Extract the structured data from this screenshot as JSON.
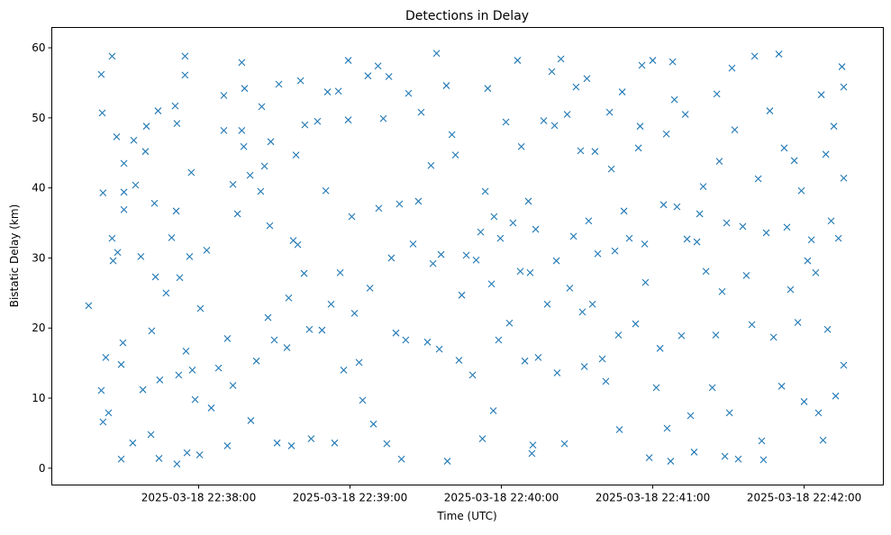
{
  "chart_data": {
    "type": "scatter",
    "title": "Detections in Delay",
    "xlabel": "Time (UTC)",
    "ylabel": "Bistatic Delay (km)",
    "x_unit": "seconds after 2025-03-18 22:37:00 UTC",
    "xlim": [
      1.8,
      331.4
    ],
    "ylim": [
      -2.4,
      62.9
    ],
    "x_ticks": [
      {
        "value": 60,
        "label": "2025-03-18 22:38:00"
      },
      {
        "value": 120,
        "label": "2025-03-18 22:39:00"
      },
      {
        "value": 180,
        "label": "2025-03-18 22:40:00"
      },
      {
        "value": 240,
        "label": "2025-03-18 22:41:00"
      },
      {
        "value": 300,
        "label": "2025-03-18 22:42:00"
      }
    ],
    "y_ticks": [
      {
        "value": 0,
        "label": "0"
      },
      {
        "value": 10,
        "label": "10"
      },
      {
        "value": 20,
        "label": "20"
      },
      {
        "value": 30,
        "label": "30"
      },
      {
        "value": 40,
        "label": "40"
      },
      {
        "value": 50,
        "label": "50"
      },
      {
        "value": 60,
        "label": "60"
      }
    ],
    "grid": false,
    "marker": "x",
    "color": "#1f77b4",
    "points": [
      [
        16.4,
        23.2
      ],
      [
        21.4,
        56.2
      ],
      [
        21.8,
        50.7
      ],
      [
        22.1,
        39.3
      ],
      [
        21.4,
        11.1
      ],
      [
        22.1,
        6.6
      ],
      [
        23.2,
        15.8
      ],
      [
        24.3,
        7.9
      ],
      [
        25.7,
        58.8
      ],
      [
        25.7,
        32.8
      ],
      [
        26.1,
        29.6
      ],
      [
        27.5,
        47.3
      ],
      [
        27.9,
        30.8
      ],
      [
        29.3,
        1.3
      ],
      [
        29.3,
        14.8
      ],
      [
        30,
        17.9
      ],
      [
        30.4,
        43.5
      ],
      [
        30.4,
        39.4
      ],
      [
        30.4,
        36.9
      ],
      [
        33.9,
        3.6
      ],
      [
        34.3,
        46.8
      ],
      [
        35,
        40.4
      ],
      [
        37.1,
        30.2
      ],
      [
        37.9,
        11.2
      ],
      [
        38.9,
        45.2
      ],
      [
        39.3,
        48.8
      ],
      [
        41.1,
        4.8
      ],
      [
        41.4,
        19.6
      ],
      [
        42.5,
        37.8
      ],
      [
        42.9,
        27.3
      ],
      [
        43.9,
        51.0
      ],
      [
        44.3,
        1.4
      ],
      [
        44.6,
        12.6
      ],
      [
        47.1,
        25.0
      ],
      [
        49.3,
        32.9
      ],
      [
        50.7,
        51.7
      ],
      [
        51.1,
        36.7
      ],
      [
        51.4,
        49.2
      ],
      [
        51.4,
        0.6
      ],
      [
        52.1,
        13.3
      ],
      [
        52.5,
        27.2
      ],
      [
        54.6,
        58.8
      ],
      [
        54.6,
        56.1
      ],
      [
        55,
        16.7
      ],
      [
        55.4,
        2.2
      ],
      [
        56.4,
        30.2
      ],
      [
        57.1,
        42.2
      ],
      [
        57.5,
        14.0
      ],
      [
        58.6,
        9.8
      ],
      [
        60.4,
        1.9
      ],
      [
        60.7,
        22.8
      ],
      [
        63.2,
        31.1
      ],
      [
        65,
        8.6
      ],
      [
        67.9,
        14.3
      ],
      [
        70,
        53.2
      ],
      [
        70,
        48.2
      ],
      [
        71.4,
        18.5
      ],
      [
        71.4,
        3.2
      ],
      [
        73.6,
        40.5
      ],
      [
        73.6,
        11.8
      ],
      [
        75.4,
        36.3
      ],
      [
        77.1,
        57.9
      ],
      [
        77.1,
        48.2
      ],
      [
        77.9,
        45.9
      ],
      [
        78.2,
        54.2
      ],
      [
        80.4,
        41.8
      ],
      [
        80.7,
        6.8
      ],
      [
        82.9,
        15.3
      ],
      [
        84.6,
        39.5
      ],
      [
        85,
        51.6
      ],
      [
        86.1,
        43.1
      ],
      [
        87.5,
        21.5
      ],
      [
        88.2,
        34.6
      ],
      [
        88.6,
        46.6
      ],
      [
        90,
        18.3
      ],
      [
        91.1,
        3.6
      ],
      [
        91.8,
        54.8
      ],
      [
        95,
        17.2
      ],
      [
        95.7,
        24.3
      ],
      [
        96.8,
        3.2
      ],
      [
        97.5,
        32.5
      ],
      [
        98.6,
        44.7
      ],
      [
        99.3,
        31.9
      ],
      [
        100.4,
        55.3
      ],
      [
        101.8,
        27.8
      ],
      [
        102.1,
        49.0
      ],
      [
        103.9,
        19.8
      ],
      [
        104.6,
        4.2
      ],
      [
        107.1,
        49.5
      ],
      [
        108.9,
        19.7
      ],
      [
        110.4,
        39.6
      ],
      [
        111.1,
        53.7
      ],
      [
        112.5,
        23.4
      ],
      [
        113.9,
        3.6
      ],
      [
        115.4,
        53.8
      ],
      [
        116.1,
        27.9
      ],
      [
        117.5,
        14.0
      ],
      [
        119.3,
        58.2
      ],
      [
        119.3,
        49.7
      ],
      [
        120.7,
        35.9
      ],
      [
        121.8,
        22.1
      ],
      [
        123.6,
        15.1
      ],
      [
        125,
        9.7
      ],
      [
        127.1,
        56.0
      ],
      [
        127.9,
        25.7
      ],
      [
        129.3,
        6.3
      ],
      [
        131.1,
        57.4
      ],
      [
        131.4,
        37.1
      ],
      [
        133.2,
        49.9
      ],
      [
        134.6,
        3.5
      ],
      [
        135.4,
        55.9
      ],
      [
        136.4,
        30.0
      ],
      [
        138.2,
        19.3
      ],
      [
        139.6,
        37.7
      ],
      [
        140.4,
        1.3
      ],
      [
        142.1,
        18.3
      ],
      [
        143.2,
        53.5
      ],
      [
        145,
        32.0
      ],
      [
        147.1,
        38.1
      ],
      [
        148.2,
        50.8
      ],
      [
        150.7,
        18.0
      ],
      [
        152.1,
        43.2
      ],
      [
        152.9,
        29.2
      ],
      [
        154.3,
        59.2
      ],
      [
        155.4,
        17.0
      ],
      [
        156.1,
        30.5
      ],
      [
        158.2,
        54.6
      ],
      [
        158.6,
        1.0
      ],
      [
        160.4,
        47.6
      ],
      [
        161.8,
        44.7
      ],
      [
        163.2,
        15.4
      ],
      [
        164.3,
        24.7
      ],
      [
        166.1,
        30.4
      ],
      [
        168.6,
        13.3
      ],
      [
        170,
        29.7
      ],
      [
        171.8,
        33.7
      ],
      [
        172.5,
        4.2
      ],
      [
        173.6,
        39.5
      ],
      [
        174.6,
        54.2
      ],
      [
        176.1,
        26.3
      ],
      [
        176.8,
        8.2
      ],
      [
        177.1,
        35.9
      ],
      [
        178.9,
        18.3
      ],
      [
        179.6,
        32.8
      ],
      [
        181.8,
        49.4
      ],
      [
        183.2,
        20.7
      ],
      [
        184.6,
        35.0
      ],
      [
        186.4,
        58.2
      ],
      [
        187.5,
        28.1
      ],
      [
        187.9,
        45.9
      ],
      [
        189.3,
        15.3
      ],
      [
        190.7,
        38.1
      ],
      [
        191.4,
        27.9
      ],
      [
        192.1,
        2.1
      ],
      [
        192.5,
        3.3
      ],
      [
        193.6,
        34.1
      ],
      [
        194.6,
        15.8
      ],
      [
        196.8,
        49.6
      ],
      [
        198.2,
        23.4
      ],
      [
        200,
        56.6
      ],
      [
        201.1,
        48.9
      ],
      [
        201.8,
        29.6
      ],
      [
        202.1,
        13.6
      ],
      [
        203.6,
        58.4
      ],
      [
        205,
        3.5
      ],
      [
        206.1,
        50.5
      ],
      [
        207.1,
        25.7
      ],
      [
        208.6,
        33.1
      ],
      [
        209.6,
        54.4
      ],
      [
        211.4,
        45.3
      ],
      [
        212.1,
        22.3
      ],
      [
        212.9,
        14.5
      ],
      [
        213.9,
        55.6
      ],
      [
        214.6,
        35.3
      ],
      [
        216.1,
        23.4
      ],
      [
        217.1,
        45.2
      ],
      [
        218.2,
        30.6
      ],
      [
        220,
        15.6
      ],
      [
        221.4,
        12.4
      ],
      [
        222.9,
        50.8
      ],
      [
        223.6,
        42.7
      ],
      [
        225,
        31.0
      ],
      [
        226.4,
        19.0
      ],
      [
        226.8,
        5.5
      ],
      [
        227.9,
        53.7
      ],
      [
        228.6,
        36.7
      ],
      [
        230.7,
        32.8
      ],
      [
        233.2,
        20.6
      ],
      [
        234.3,
        45.7
      ],
      [
        235,
        48.8
      ],
      [
        235.7,
        57.5
      ],
      [
        236.8,
        32.0
      ],
      [
        237.1,
        26.5
      ],
      [
        238.6,
        1.5
      ],
      [
        240,
        58.2
      ],
      [
        241.4,
        11.5
      ],
      [
        242.9,
        17.1
      ],
      [
        244.3,
        37.6
      ],
      [
        245.4,
        47.7
      ],
      [
        245.7,
        5.7
      ],
      [
        247.1,
        1.0
      ],
      [
        247.9,
        58.0
      ],
      [
        248.6,
        52.6
      ],
      [
        249.6,
        37.3
      ],
      [
        251.4,
        18.9
      ],
      [
        252.9,
        50.5
      ],
      [
        253.6,
        32.7
      ],
      [
        255,
        7.5
      ],
      [
        256.4,
        2.3
      ],
      [
        257.5,
        32.3
      ],
      [
        258.6,
        36.3
      ],
      [
        260,
        40.2
      ],
      [
        261.1,
        28.1
      ],
      [
        263.6,
        11.5
      ],
      [
        265,
        19.0
      ],
      [
        265.4,
        53.4
      ],
      [
        266.4,
        43.8
      ],
      [
        267.5,
        25.2
      ],
      [
        268.6,
        1.7
      ],
      [
        269.3,
        35.0
      ],
      [
        270.4,
        7.9
      ],
      [
        271.4,
        57.1
      ],
      [
        272.5,
        48.3
      ],
      [
        273.9,
        1.3
      ],
      [
        275.7,
        34.5
      ],
      [
        277.1,
        27.5
      ],
      [
        279.3,
        20.5
      ],
      [
        280.4,
        58.8
      ],
      [
        281.8,
        41.3
      ],
      [
        283.2,
        3.9
      ],
      [
        283.9,
        1.2
      ],
      [
        285,
        33.6
      ],
      [
        286.4,
        51.0
      ],
      [
        287.9,
        18.7
      ],
      [
        290,
        59.1
      ],
      [
        291.1,
        11.7
      ],
      [
        292.1,
        45.7
      ],
      [
        293.2,
        34.4
      ],
      [
        294.6,
        25.5
      ],
      [
        296.1,
        43.9
      ],
      [
        297.5,
        20.8
      ],
      [
        298.9,
        39.6
      ],
      [
        300,
        9.5
      ],
      [
        301.4,
        29.6
      ],
      [
        302.9,
        32.6
      ],
      [
        304.6,
        27.9
      ],
      [
        305.7,
        7.9
      ],
      [
        306.8,
        53.3
      ],
      [
        307.5,
        4.0
      ],
      [
        308.6,
        44.8
      ],
      [
        309.3,
        19.8
      ],
      [
        310.7,
        35.3
      ],
      [
        311.8,
        48.8
      ],
      [
        312.5,
        10.3
      ],
      [
        313.6,
        32.8
      ],
      [
        315,
        57.3
      ],
      [
        315.7,
        41.4
      ],
      [
        315.7,
        14.7
      ],
      [
        315.7,
        54.4
      ]
    ]
  }
}
